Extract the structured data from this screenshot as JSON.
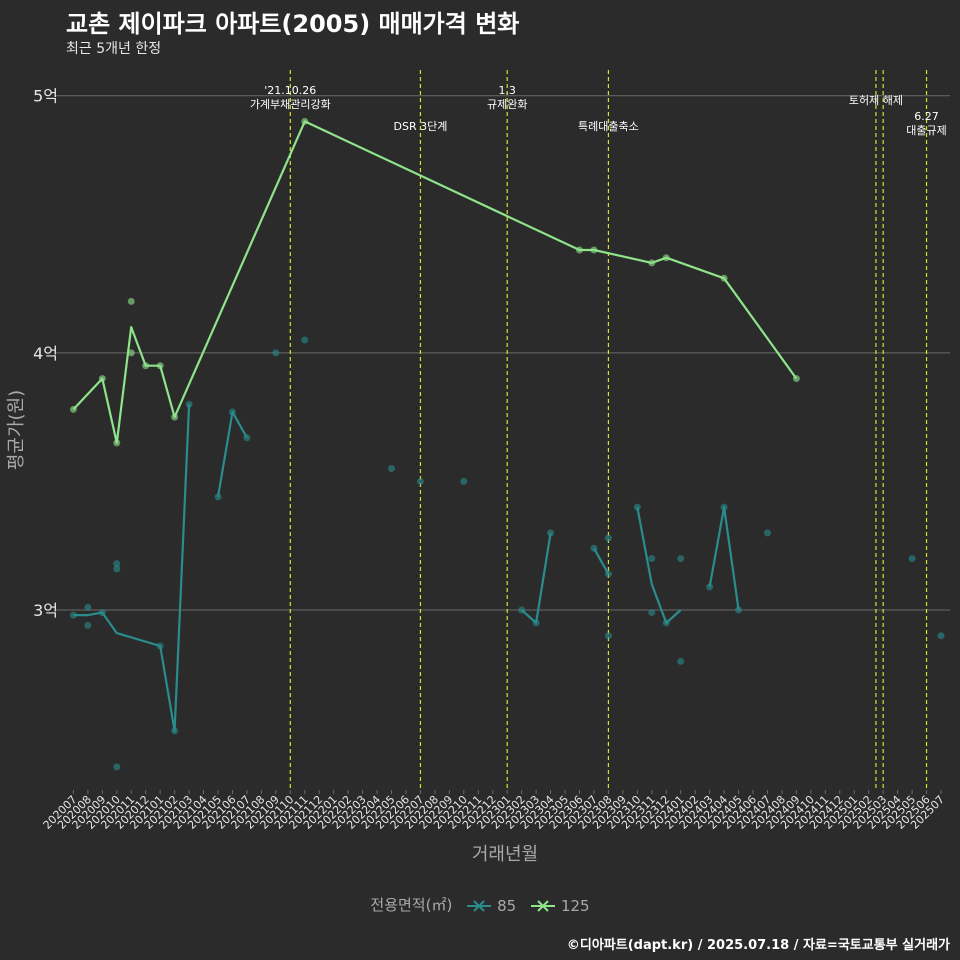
{
  "title": "교촌 제이파크 아파트(2005) 매매가격 변화",
  "subtitle": "최근 5개년 한정",
  "caption": "©디아파트(dapt.kr) / 2025.07.18 / 자료=국토교통부 실거래가",
  "colors": {
    "background": "#2b2b2b",
    "grid": "#6a6a6a",
    "vline": "#d7e32a",
    "s85": "#2a8c8c",
    "s125": "#8fe38a",
    "axis_text": "#a9a9a9",
    "tick_text": "#e6e6e6"
  },
  "chart_data": {
    "type": "line",
    "title": "교촌 제이파크 아파트(2005) 매매가격 변화",
    "xlabel": "거래년월",
    "ylabel": "평균가(원)",
    "ylim": [
      2.3,
      5.1
    ],
    "y_ticks": [
      {
        "value": 3,
        "label": "3억"
      },
      {
        "value": 4,
        "label": "4억"
      },
      {
        "value": 5,
        "label": "5억"
      }
    ],
    "categories": [
      "202007",
      "202008",
      "202009",
      "202010",
      "202011",
      "202012",
      "202101",
      "202102",
      "202103",
      "202104",
      "202105",
      "202106",
      "202107",
      "202108",
      "202109",
      "202110",
      "202111",
      "202112",
      "202201",
      "202202",
      "202203",
      "202204",
      "202205",
      "202206",
      "202207",
      "202208",
      "202209",
      "202210",
      "202211",
      "202212",
      "202301",
      "202302",
      "202303",
      "202304",
      "202305",
      "202306",
      "202307",
      "202308",
      "202309",
      "202310",
      "202311",
      "202312",
      "202401",
      "202402",
      "202403",
      "202404",
      "202405",
      "202406",
      "202407",
      "202408",
      "202409",
      "202410",
      "202411",
      "202412",
      "202501",
      "202502",
      "202503",
      "202504",
      "202505",
      "202506",
      "202507"
    ],
    "legend_title": "전용면적(㎡)",
    "series": [
      {
        "name": "85",
        "line": [
          [
            [
              0,
              2.98
            ],
            [
              1,
              2.98
            ],
            [
              2,
              2.99
            ],
            [
              3,
              2.91
            ],
            [
              6,
              2.86
            ],
            [
              7,
              2.53
            ],
            [
              8,
              3.8
            ]
          ],
          [
            [
              10,
              3.44
            ],
            [
              11,
              3.77
            ],
            [
              12,
              3.67
            ]
          ],
          [
            [
              31,
              3.0
            ],
            [
              32,
              2.95
            ],
            [
              33,
              3.3
            ]
          ],
          [
            [
              36,
              3.24
            ],
            [
              37,
              3.14
            ]
          ],
          [
            [
              39,
              3.4
            ],
            [
              40,
              3.1
            ],
            [
              41,
              2.95
            ],
            [
              42,
              3.0
            ]
          ],
          [
            [
              44,
              3.09
            ],
            [
              45,
              3.4
            ],
            [
              46,
              3.0
            ]
          ]
        ],
        "points": [
          [
            0,
            2.98
          ],
          [
            1,
            3.01
          ],
          [
            1,
            2.94
          ],
          [
            2,
            2.99
          ],
          [
            3,
            3.18
          ],
          [
            3,
            3.16
          ],
          [
            3,
            2.39
          ],
          [
            6,
            2.86
          ],
          [
            7,
            2.53
          ],
          [
            8,
            3.8
          ],
          [
            10,
            3.44
          ],
          [
            11,
            3.77
          ],
          [
            12,
            3.67
          ],
          [
            14,
            4.0
          ],
          [
            16,
            4.05
          ],
          [
            22,
            3.55
          ],
          [
            24,
            3.5
          ],
          [
            27,
            3.5
          ],
          [
            31,
            3.0
          ],
          [
            32,
            2.95
          ],
          [
            33,
            3.3
          ],
          [
            36,
            3.24
          ],
          [
            37,
            3.28
          ],
          [
            37,
            3.14
          ],
          [
            37,
            2.9
          ],
          [
            39,
            3.4
          ],
          [
            40,
            3.2
          ],
          [
            40,
            2.99
          ],
          [
            41,
            2.95
          ],
          [
            42,
            3.2
          ],
          [
            42,
            2.8
          ],
          [
            44,
            3.09
          ],
          [
            45,
            3.4
          ],
          [
            46,
            3.0
          ],
          [
            48,
            3.3
          ],
          [
            58,
            3.2
          ],
          [
            60,
            2.9
          ]
        ]
      },
      {
        "name": "125",
        "line": [
          [
            [
              0,
              3.78
            ],
            [
              2,
              3.9
            ],
            [
              3,
              3.65
            ],
            [
              4,
              4.1
            ],
            [
              5,
              3.95
            ],
            [
              6,
              3.95
            ],
            [
              7,
              3.75
            ],
            [
              16,
              4.9
            ],
            [
              35,
              4.4
            ],
            [
              36,
              4.4
            ],
            [
              40,
              4.35
            ],
            [
              41,
              4.37
            ],
            [
              45,
              4.29
            ],
            [
              50,
              3.9
            ]
          ]
        ],
        "points": [
          [
            0,
            3.78
          ],
          [
            2,
            3.9
          ],
          [
            3,
            3.65
          ],
          [
            4,
            4.2
          ],
          [
            4,
            4.0
          ],
          [
            5,
            3.95
          ],
          [
            6,
            3.95
          ],
          [
            7,
            3.75
          ],
          [
            16,
            4.9
          ],
          [
            35,
            4.4
          ],
          [
            36,
            4.4
          ],
          [
            40,
            4.35
          ],
          [
            41,
            4.37
          ],
          [
            45,
            4.29
          ],
          [
            50,
            3.9
          ]
        ]
      }
    ],
    "annotations": [
      {
        "at": 15,
        "lines": [
          "'21.10.26",
          "가계부채관리강화"
        ],
        "level": "top"
      },
      {
        "at": 24,
        "lines": [
          "DSR 3단계"
        ],
        "level": "low"
      },
      {
        "at": 30,
        "lines": [
          "1.3",
          "규제완화"
        ],
        "level": "top"
      },
      {
        "at": 37,
        "lines": [
          "특례대출축소"
        ],
        "level": "low"
      },
      {
        "at": 55.5,
        "lines": [
          "토허제 해제"
        ],
        "level": "mid"
      },
      {
        "at": 59,
        "lines": [
          "6.27",
          "대출규제"
        ],
        "level": "bottom"
      }
    ],
    "extra_vlines": [
      56
    ]
  }
}
